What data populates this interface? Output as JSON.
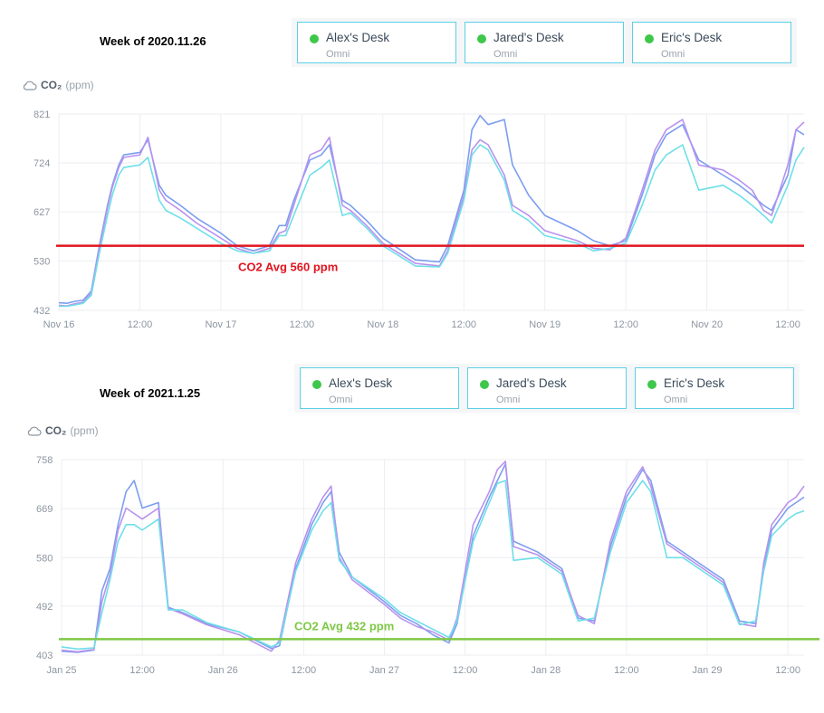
{
  "legend": {
    "subtitle": "Omni",
    "items": [
      {
        "label": "Alex's Desk",
        "dot_color": "#3ec74b"
      },
      {
        "label": "Jared's Desk",
        "dot_color": "#3ec74b"
      },
      {
        "label": "Eric's Desk",
        "dot_color": "#3ec74b"
      }
    ]
  },
  "unit": {
    "name": "CO₂",
    "unit": "(ppm)"
  },
  "series_colors": [
    "#7c9ef0",
    "#b892ee",
    "#6edfe8"
  ],
  "chart_data": [
    {
      "type": "line",
      "title": "Week of 2020.11.26",
      "ylabel": "CO₂ (ppm)",
      "ylim": [
        432,
        821
      ],
      "yticks": [
        432,
        530,
        627,
        724,
        821
      ],
      "xlim": [
        0,
        4.6
      ],
      "xticks": [
        {
          "x": 0,
          "label": "Nov 16"
        },
        {
          "x": 0.5,
          "label": "12:00"
        },
        {
          "x": 1,
          "label": "Nov 17"
        },
        {
          "x": 1.5,
          "label": "12:00"
        },
        {
          "x": 2,
          "label": "Nov 18"
        },
        {
          "x": 2.5,
          "label": "12:00"
        },
        {
          "x": 3,
          "label": "Nov 19"
        },
        {
          "x": 3.5,
          "label": "12:00"
        },
        {
          "x": 4,
          "label": "Nov 20"
        },
        {
          "x": 4.5,
          "label": "12:00"
        }
      ],
      "grid": true,
      "avg_line": {
        "value": 560,
        "label": "CO2 Avg 560 ppm",
        "color": "#e0141e"
      },
      "series": [
        {
          "name": "Alex's Desk",
          "x": [
            0,
            0.05,
            0.1,
            0.15,
            0.2,
            0.25,
            0.3,
            0.33,
            0.37,
            0.4,
            0.5,
            0.55,
            0.62,
            0.66,
            0.75,
            0.85,
            1.0,
            1.1,
            1.2,
            1.3,
            1.36,
            1.4,
            1.45,
            1.55,
            1.62,
            1.67,
            1.75,
            1.8,
            1.9,
            2.0,
            2.2,
            2.35,
            2.4,
            2.5,
            2.55,
            2.6,
            2.65,
            2.75,
            2.8,
            2.9,
            3.0,
            3.2,
            3.3,
            3.4,
            3.5,
            3.6,
            3.68,
            3.75,
            3.8,
            3.85,
            3.95,
            4.1,
            4.2,
            4.28,
            4.35,
            4.4,
            4.5,
            4.55,
            4.6
          ],
          "values": [
            447,
            446,
            450,
            452,
            470,
            560,
            640,
            680,
            720,
            740,
            745,
            770,
            680,
            660,
            640,
            615,
            585,
            560,
            550,
            560,
            600,
            600,
            650,
            730,
            740,
            760,
            650,
            640,
            610,
            575,
            532,
            528,
            560,
            670,
            790,
            818,
            800,
            810,
            720,
            660,
            620,
            590,
            570,
            560,
            570,
            660,
            740,
            780,
            790,
            800,
            730,
            700,
            680,
            660,
            640,
            630,
            700,
            790,
            780
          ]
        },
        {
          "name": "Jared's Desk",
          "x": [
            0,
            0.05,
            0.1,
            0.15,
            0.2,
            0.25,
            0.3,
            0.33,
            0.37,
            0.4,
            0.5,
            0.55,
            0.62,
            0.66,
            0.75,
            0.85,
            1.0,
            1.1,
            1.2,
            1.3,
            1.36,
            1.4,
            1.45,
            1.55,
            1.62,
            1.67,
            1.75,
            1.8,
            1.9,
            2.0,
            2.2,
            2.35,
            2.4,
            2.5,
            2.55,
            2.6,
            2.65,
            2.75,
            2.8,
            2.9,
            3.0,
            3.2,
            3.3,
            3.4,
            3.5,
            3.6,
            3.68,
            3.75,
            3.8,
            3.85,
            3.95,
            4.1,
            4.2,
            4.28,
            4.35,
            4.4,
            4.5,
            4.55,
            4.6
          ],
          "values": [
            442,
            441,
            445,
            448,
            465,
            555,
            635,
            675,
            715,
            735,
            740,
            775,
            670,
            650,
            630,
            605,
            575,
            555,
            545,
            555,
            585,
            590,
            640,
            740,
            750,
            775,
            640,
            630,
            600,
            565,
            525,
            520,
            550,
            660,
            750,
            770,
            760,
            700,
            640,
            620,
            590,
            570,
            555,
            552,
            575,
            670,
            750,
            790,
            800,
            810,
            720,
            710,
            690,
            670,
            630,
            620,
            720,
            790,
            805
          ]
        },
        {
          "name": "Eric's Desk",
          "x": [
            0,
            0.05,
            0.1,
            0.15,
            0.2,
            0.25,
            0.3,
            0.33,
            0.37,
            0.4,
            0.5,
            0.55,
            0.62,
            0.66,
            0.75,
            0.85,
            1.0,
            1.1,
            1.2,
            1.3,
            1.36,
            1.4,
            1.45,
            1.55,
            1.62,
            1.67,
            1.75,
            1.8,
            1.9,
            2.0,
            2.2,
            2.35,
            2.4,
            2.5,
            2.55,
            2.6,
            2.65,
            2.75,
            2.8,
            2.9,
            3.0,
            3.2,
            3.3,
            3.4,
            3.5,
            3.6,
            3.68,
            3.75,
            3.8,
            3.85,
            3.95,
            4.1,
            4.2,
            4.28,
            4.35,
            4.4,
            4.5,
            4.55,
            4.6
          ],
          "values": [
            440,
            440,
            443,
            446,
            462,
            545,
            620,
            660,
            700,
            715,
            720,
            735,
            650,
            630,
            615,
            595,
            565,
            550,
            545,
            550,
            580,
            580,
            620,
            700,
            715,
            730,
            620,
            625,
            595,
            560,
            520,
            518,
            545,
            650,
            740,
            760,
            750,
            690,
            630,
            610,
            580,
            565,
            550,
            555,
            565,
            640,
            710,
            740,
            750,
            760,
            670,
            680,
            660,
            640,
            620,
            605,
            680,
            730,
            755
          ]
        }
      ]
    },
    {
      "type": "line",
      "title": "Week of 2021.1.25",
      "ylabel": "CO₂ (ppm)",
      "ylim": [
        403,
        758
      ],
      "yticks": [
        403,
        492,
        580,
        669,
        758
      ],
      "xlim": [
        0,
        4.6
      ],
      "xticks": [
        {
          "x": 0,
          "label": "Jan 25"
        },
        {
          "x": 0.5,
          "label": "12:00"
        },
        {
          "x": 1,
          "label": "Jan 26"
        },
        {
          "x": 1.5,
          "label": "12:00"
        },
        {
          "x": 2,
          "label": "Jan 27"
        },
        {
          "x": 2.5,
          "label": "12:00"
        },
        {
          "x": 3,
          "label": "Jan 28"
        },
        {
          "x": 3.5,
          "label": "12:00"
        },
        {
          "x": 4,
          "label": "Jan 29"
        },
        {
          "x": 4.5,
          "label": "12:00"
        }
      ],
      "grid": true,
      "avg_line": {
        "value": 432,
        "label": "CO2 Avg 432 ppm",
        "color": "#7ec845"
      },
      "series": [
        {
          "name": "Alex's Desk",
          "x": [
            0,
            0.1,
            0.15,
            0.2,
            0.25,
            0.3,
            0.35,
            0.4,
            0.45,
            0.5,
            0.6,
            0.66,
            0.75,
            0.9,
            1.1,
            1.3,
            1.35,
            1.45,
            1.55,
            1.62,
            1.67,
            1.72,
            1.8,
            2.0,
            2.1,
            2.2,
            2.3,
            2.4,
            2.45,
            2.55,
            2.65,
            2.7,
            2.75,
            2.8,
            2.95,
            3.1,
            3.2,
            3.3,
            3.4,
            3.5,
            3.6,
            3.65,
            3.75,
            3.85,
            4.0,
            4.1,
            4.2,
            4.3,
            4.35,
            4.4,
            4.5,
            4.55,
            4.6
          ],
          "values": [
            410,
            408,
            410,
            412,
            520,
            560,
            640,
            700,
            720,
            670,
            680,
            490,
            480,
            460,
            445,
            415,
            420,
            560,
            640,
            680,
            700,
            590,
            545,
            500,
            475,
            460,
            440,
            425,
            460,
            620,
            690,
            720,
            750,
            610,
            590,
            560,
            470,
            465,
            600,
            690,
            740,
            720,
            610,
            590,
            560,
            540,
            465,
            460,
            560,
            630,
            670,
            680,
            690
          ]
        },
        {
          "name": "Jared's Desk",
          "x": [
            0,
            0.1,
            0.15,
            0.2,
            0.25,
            0.3,
            0.35,
            0.4,
            0.45,
            0.5,
            0.6,
            0.66,
            0.75,
            0.9,
            1.1,
            1.3,
            1.35,
            1.45,
            1.55,
            1.62,
            1.67,
            1.72,
            1.8,
            2.0,
            2.1,
            2.2,
            2.3,
            2.4,
            2.45,
            2.55,
            2.65,
            2.7,
            2.75,
            2.8,
            2.95,
            3.1,
            3.2,
            3.3,
            3.4,
            3.5,
            3.6,
            3.65,
            3.75,
            3.85,
            4.0,
            4.1,
            4.2,
            4.3,
            4.35,
            4.4,
            4.5,
            4.55,
            4.6
          ],
          "values": [
            412,
            409,
            411,
            413,
            500,
            550,
            630,
            670,
            660,
            650,
            670,
            488,
            478,
            458,
            440,
            410,
            430,
            570,
            650,
            690,
            710,
            580,
            540,
            495,
            470,
            455,
            445,
            430,
            470,
            640,
            700,
            740,
            755,
            600,
            585,
            555,
            475,
            460,
            610,
            700,
            745,
            710,
            605,
            585,
            555,
            535,
            460,
            455,
            570,
            640,
            680,
            690,
            710
          ]
        },
        {
          "name": "Eric's Desk",
          "x": [
            0,
            0.1,
            0.15,
            0.2,
            0.25,
            0.3,
            0.35,
            0.4,
            0.45,
            0.5,
            0.6,
            0.66,
            0.75,
            0.9,
            1.1,
            1.3,
            1.35,
            1.45,
            1.55,
            1.62,
            1.67,
            1.72,
            1.8,
            2.0,
            2.1,
            2.2,
            2.3,
            2.4,
            2.45,
            2.55,
            2.65,
            2.7,
            2.75,
            2.8,
            2.95,
            3.1,
            3.2,
            3.3,
            3.4,
            3.5,
            3.6,
            3.65,
            3.75,
            3.85,
            4.0,
            4.1,
            4.2,
            4.3,
            4.35,
            4.4,
            4.5,
            4.55,
            4.6
          ],
          "values": [
            418,
            414,
            415,
            416,
            480,
            540,
            610,
            640,
            640,
            630,
            650,
            485,
            485,
            462,
            445,
            418,
            425,
            555,
            630,
            665,
            680,
            575,
            545,
            505,
            480,
            465,
            450,
            435,
            465,
            610,
            680,
            715,
            720,
            575,
            580,
            550,
            465,
            470,
            590,
            680,
            720,
            700,
            580,
            580,
            550,
            530,
            458,
            465,
            555,
            620,
            650,
            660,
            665
          ]
        }
      ]
    }
  ]
}
